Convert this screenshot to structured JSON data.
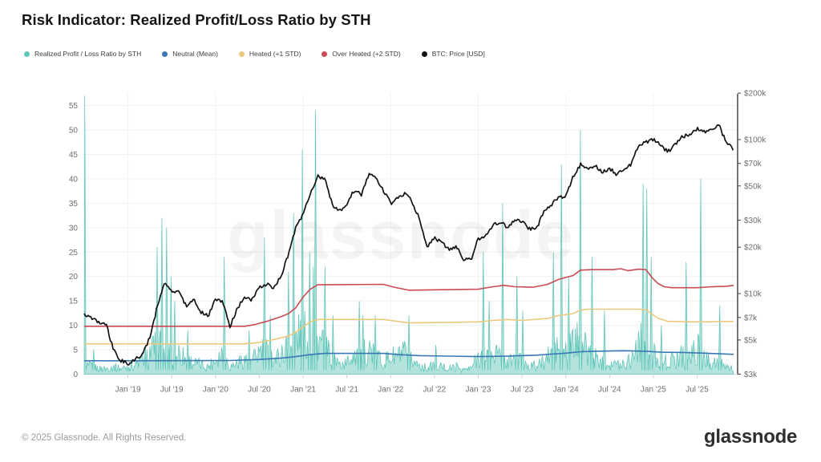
{
  "footer": {
    "copyright": "© 2025 Glassnode. All Rights Reserved.",
    "brand": "glassnode"
  },
  "watermark": "glassnode",
  "legend": {
    "items": [
      {
        "label": "Realized Profit / Loss Ratio by STH",
        "color": "#5fc6ba",
        "slug": "realized-pl-ratio-sth"
      },
      {
        "label": "Neutral (Mean)",
        "color": "#3878b4",
        "slug": "neutral-mean"
      },
      {
        "label": "Heated (+1 STD)",
        "color": "#ecc87c",
        "slug": "heated-plus1-std"
      },
      {
        "label": "Over Heated (+2 STD)",
        "color": "#cb4a54",
        "slug": "over-heated-plus2-std"
      },
      {
        "label": "BTC: Price [USD]",
        "color": "#131313",
        "slug": "btc-price-usd"
      }
    ]
  },
  "chart_data": {
    "type": "composite",
    "title": "Risk Indicator: Realized Profit/Loss Ratio by STH",
    "grid": "horizontal-and-year-verticals",
    "legend_position": "top-left",
    "x_axis": {
      "start_month": "2018-07",
      "months_total": 89,
      "tick_labels": [
        "Jan '19",
        "Jul '19",
        "Jan '20",
        "Jul '20",
        "Jan '21",
        "Jul '21",
        "Jan '22",
        "Jul '22",
        "Jan '23",
        "Jul '23",
        "Jan '24",
        "Jul '24",
        "Jan '25",
        "Jul '25"
      ],
      "tick_month_index": [
        6,
        12,
        18,
        24,
        30,
        36,
        42,
        48,
        54,
        60,
        66,
        72,
        78,
        84
      ],
      "year_gridline_index": [
        6,
        18,
        30,
        42,
        54,
        66,
        78
      ]
    },
    "left_axis": {
      "side": "left",
      "scale": "linear",
      "min": 0,
      "max": 57.4,
      "ticks": [
        0,
        5,
        10,
        15,
        20,
        25,
        30,
        35,
        40,
        45,
        50,
        55
      ]
    },
    "right_axis": {
      "side": "right",
      "scale": "log",
      "min": 3000,
      "max": 198000,
      "ticks": [
        "$200k",
        "$100k",
        "$70k",
        "$50k",
        "$30k",
        "$20k",
        "$10k",
        "$7k",
        "$5k",
        "$3k"
      ],
      "tick_values": [
        200000,
        100000,
        70000,
        50000,
        30000,
        20000,
        10000,
        7000,
        5000,
        3000
      ]
    },
    "series": [
      {
        "name": "Realized Profit / Loss Ratio by STH",
        "type": "area",
        "axis": "left",
        "color": "#58c2b5",
        "fill": "#7ed0c4",
        "monthly_baseline": [
          2.5,
          2,
          1.5,
          1.5,
          2,
          1.5,
          2,
          2.5,
          4,
          6,
          8,
          7,
          5,
          6,
          4,
          3,
          2.5,
          2,
          4,
          6,
          2,
          3,
          4,
          3.5,
          6,
          6,
          4,
          5,
          8,
          10,
          11,
          9,
          9,
          7,
          5,
          2.5,
          3,
          6,
          5,
          7,
          5,
          3.5,
          4.5,
          5,
          5.5,
          3.5,
          2.5,
          1.5,
          2.5,
          2,
          1.5,
          2,
          1.2,
          1.5,
          5,
          5.5,
          6.5,
          4.5,
          3,
          4.5,
          3.5,
          2.5,
          2,
          3.5,
          5.5,
          7,
          6,
          8,
          9,
          6,
          4.5,
          3,
          3,
          2.5,
          3,
          4.5,
          9,
          7.5,
          5.5,
          4,
          3,
          4,
          5.5,
          4.5,
          7,
          4,
          3.5,
          3,
          2,
          1.5
        ],
        "spikes": [
          [
            0.08,
            57
          ],
          [
            1.3,
            5
          ],
          [
            8.6,
            5
          ],
          [
            10.0,
            26
          ],
          [
            10.65,
            32
          ],
          [
            11.3,
            30
          ],
          [
            11.9,
            20
          ],
          [
            12.4,
            15
          ],
          [
            14.2,
            9
          ],
          [
            19.2,
            24
          ],
          [
            22.6,
            9
          ],
          [
            24.7,
            28
          ],
          [
            25.5,
            12
          ],
          [
            28.0,
            21
          ],
          [
            28.7,
            33
          ],
          [
            29.9,
            46
          ],
          [
            30.9,
            25
          ],
          [
            31.4,
            22
          ],
          [
            31.7,
            54
          ],
          [
            33.0,
            22
          ],
          [
            34.1,
            12
          ],
          [
            37.7,
            15
          ],
          [
            38.2,
            12
          ],
          [
            39.9,
            12
          ],
          [
            44.5,
            12
          ],
          [
            48.2,
            6
          ],
          [
            54.7,
            25
          ],
          [
            55.5,
            15
          ],
          [
            57.35,
            35
          ],
          [
            59.3,
            20
          ],
          [
            60.1,
            13
          ],
          [
            64.3,
            25
          ],
          [
            65.4,
            43
          ],
          [
            66.4,
            20
          ],
          [
            68.0,
            50
          ],
          [
            69.6,
            24
          ],
          [
            71.3,
            13
          ],
          [
            76.6,
            39
          ],
          [
            77.1,
            38
          ],
          [
            77.7,
            24
          ],
          [
            79.1,
            10
          ],
          [
            82.5,
            23
          ],
          [
            84.5,
            40
          ],
          [
            87.1,
            14
          ]
        ]
      },
      {
        "name": "Neutral (Mean)",
        "type": "line",
        "axis": "left",
        "color": "#3878b4",
        "points": [
          [
            0,
            2.75
          ],
          [
            20,
            2.8
          ],
          [
            24,
            3.0
          ],
          [
            27,
            3.3
          ],
          [
            29,
            3.6
          ],
          [
            31,
            4.0
          ],
          [
            33,
            4.25
          ],
          [
            41,
            4.25
          ],
          [
            43,
            4.0
          ],
          [
            46,
            3.8
          ],
          [
            50,
            3.7
          ],
          [
            54,
            3.6
          ],
          [
            58,
            3.7
          ],
          [
            62,
            3.9
          ],
          [
            64,
            4.1
          ],
          [
            66,
            4.3
          ],
          [
            68,
            4.6
          ],
          [
            70,
            4.7
          ],
          [
            74,
            4.8
          ],
          [
            77,
            4.7
          ],
          [
            79,
            4.5
          ],
          [
            82,
            4.45
          ],
          [
            85,
            4.3
          ],
          [
            89,
            4.05
          ]
        ]
      },
      {
        "name": "Heated (+1 STD)",
        "type": "line",
        "axis": "left",
        "color": "#ecc87c",
        "points": [
          [
            0,
            6.2
          ],
          [
            22,
            6.2
          ],
          [
            24,
            6.5
          ],
          [
            26,
            7.1
          ],
          [
            28,
            7.8
          ],
          [
            29,
            8.6
          ],
          [
            30,
            9.7
          ],
          [
            31,
            10.7
          ],
          [
            32,
            11.2
          ],
          [
            41,
            11.2
          ],
          [
            42.5,
            10.9
          ],
          [
            44.5,
            10.5
          ],
          [
            54,
            10.7
          ],
          [
            56,
            11.0
          ],
          [
            58,
            11.2
          ],
          [
            60,
            11.0
          ],
          [
            63.5,
            11.4
          ],
          [
            65,
            12.0
          ],
          [
            67,
            12.4
          ],
          [
            68,
            13.1
          ],
          [
            69,
            13.3
          ],
          [
            76,
            13.3
          ],
          [
            77,
            13.2
          ],
          [
            77.8,
            12.3
          ],
          [
            78.6,
            11.5
          ],
          [
            80,
            10.8
          ],
          [
            84,
            10.7
          ],
          [
            89,
            10.8
          ]
        ]
      },
      {
        "name": "Over Heated (+2 STD)",
        "type": "line",
        "axis": "left",
        "color": "#cb4a54",
        "points": [
          [
            0,
            9.8
          ],
          [
            22,
            9.8
          ],
          [
            23.5,
            10.2
          ],
          [
            25,
            10.8
          ],
          [
            27,
            11.8
          ],
          [
            28,
            12.4
          ],
          [
            29,
            13.6
          ],
          [
            30,
            15.8
          ],
          [
            31,
            17.4
          ],
          [
            32,
            18.3
          ],
          [
            41,
            18.4
          ],
          [
            42.5,
            17.8
          ],
          [
            44.5,
            17.2
          ],
          [
            54,
            17.4
          ],
          [
            56,
            17.9
          ],
          [
            57.5,
            18.2
          ],
          [
            59,
            17.9
          ],
          [
            61.5,
            17.8
          ],
          [
            63.5,
            18.4
          ],
          [
            65,
            19.4
          ],
          [
            66,
            19.8
          ],
          [
            67,
            20.2
          ],
          [
            68,
            21.3
          ],
          [
            69.5,
            21.4
          ],
          [
            72.5,
            21.4
          ],
          [
            73.5,
            21.6
          ],
          [
            74.5,
            21.2
          ],
          [
            76,
            21.5
          ],
          [
            77,
            21.4
          ],
          [
            77.8,
            19.8
          ],
          [
            78.6,
            18.6
          ],
          [
            79.5,
            17.9
          ],
          [
            80.5,
            17.7
          ],
          [
            84,
            17.7
          ],
          [
            86,
            17.9
          ],
          [
            88,
            18.0
          ],
          [
            89,
            18.2
          ]
        ]
      },
      {
        "name": "BTC: Price [USD]",
        "type": "line",
        "axis": "right",
        "color": "#131313",
        "monthly": [
          7400,
          7000,
          6500,
          6400,
          4300,
          3700,
          3500,
          3800,
          4000,
          5200,
          8200,
          11500,
          10500,
          10200,
          8300,
          9200,
          7600,
          7200,
          9300,
          8800,
          6100,
          8100,
          9400,
          9100,
          10900,
          11600,
          10800,
          13000,
          18000,
          27000,
          33000,
          45000,
          58000,
          56000,
          38000,
          34000,
          38000,
          47000,
          44000,
          60000,
          57000,
          47000,
          38500,
          42000,
          45000,
          39000,
          30000,
          20000,
          23000,
          21500,
          19500,
          20400,
          16800,
          16600,
          22800,
          23400,
          27800,
          29000,
          27200,
          30200,
          29300,
          26300,
          26500,
          34000,
          37500,
          42500,
          42800,
          57000,
          69000,
          63500,
          67500,
          61500,
          65000,
          59500,
          63500,
          69500,
          93000,
          96000,
          101000,
          91000,
          83500,
          93000,
          105000,
          106500,
          117000,
          112000,
          115000,
          123000,
          96000,
          85500
        ]
      }
    ]
  }
}
